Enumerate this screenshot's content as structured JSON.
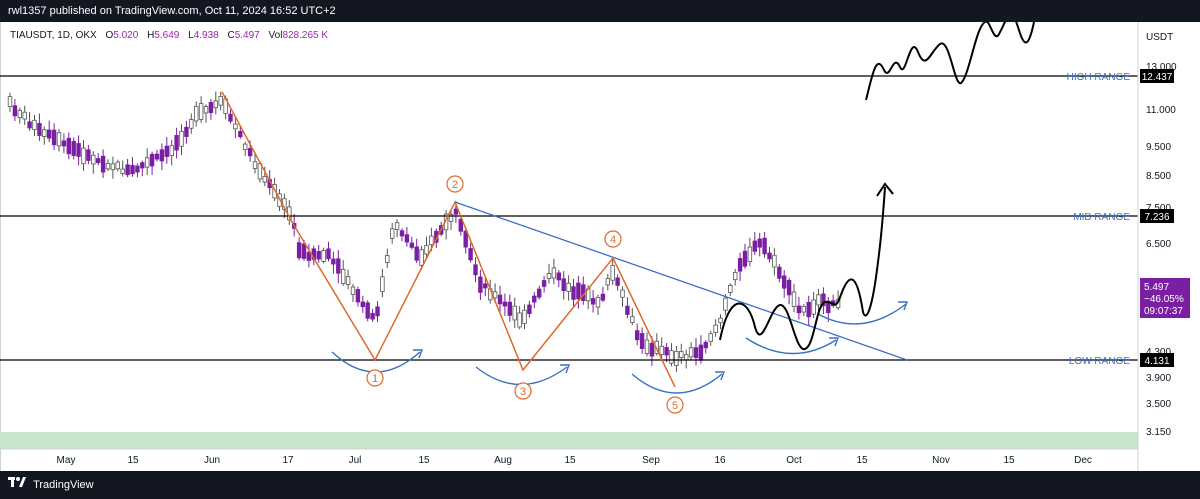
{
  "header": {
    "publisher_line": "rwl1357 published on TradingView.com, Oct 11, 2024 16:52 UTC+2"
  },
  "legend": {
    "symbol": "TIAUSDT, 1D, OKX",
    "open_label": "O",
    "open": "5.020",
    "high_label": "H",
    "high": "5.649",
    "low_label": "L",
    "low": "4.938",
    "close_label": "C",
    "close": "5.497",
    "vol_label": "Vol",
    "vol": "828.265 K"
  },
  "price_axis": {
    "currency": "USDT",
    "ticks": [
      "13.000",
      "11.000",
      "9.500",
      "8.500",
      "7.500",
      "6.500",
      "4.300",
      "3.900",
      "3.500",
      "3.150"
    ],
    "current_price": "5.497",
    "current_change": "−46.05%",
    "current_countdown": "09:07:37"
  },
  "time_axis": {
    "ticks": [
      "May",
      "15",
      "Jun",
      "17",
      "Jul",
      "15",
      "Aug",
      "15",
      "Sep",
      "16",
      "Oct",
      "15",
      "Nov",
      "15",
      "Dec"
    ]
  },
  "levels": [
    {
      "name": "HIGH RANGE",
      "value": "12.437"
    },
    {
      "name": "MID RANGE",
      "value": "7.236"
    },
    {
      "name": "LOW RANGE",
      "value": "4.131"
    }
  ],
  "wave_labels": [
    "1",
    "2",
    "3",
    "4",
    "5"
  ],
  "footer": {
    "brand": "TradingView"
  },
  "colors": {
    "bull": "#ffffff",
    "bear": "#7b1fa2",
    "wave": "#e0682a",
    "curve": "#3a6fc4",
    "trendline": "#3a6fc4",
    "zone": "#c8e6c9",
    "price_tag": "#7b1fa2"
  }
}
